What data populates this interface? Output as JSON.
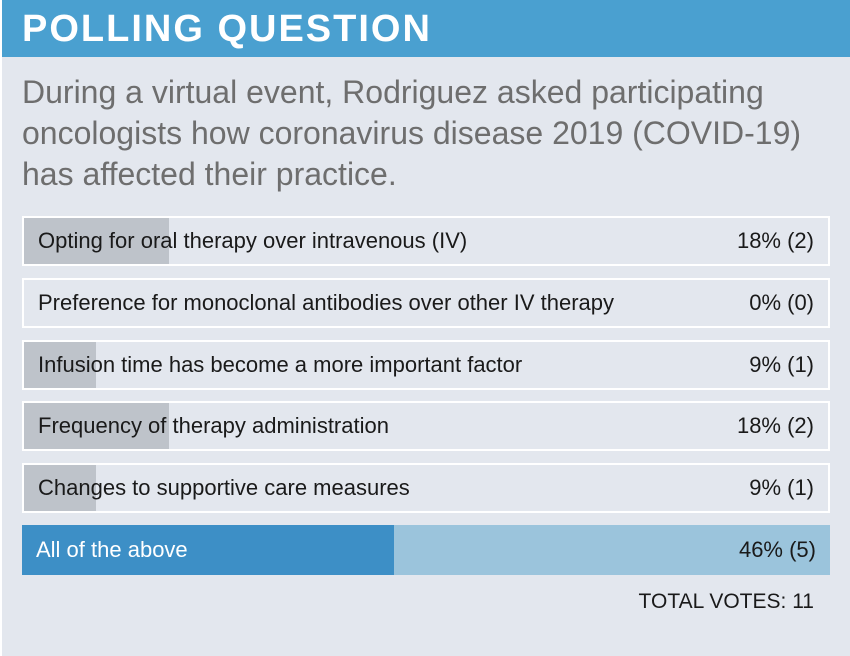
{
  "header": {
    "title": "POLLING QUESTION"
  },
  "question": "During a virtual event, Rodriguez asked participating oncologists how coronavirus disease 2019 (COVID-19) has affected their practice.",
  "options": [
    {
      "label": "Opting for oral therapy over intravenous (IV)",
      "result": "18% (2)"
    },
    {
      "label": "Preference for monoclonal antibodies over other IV therapy",
      "result": "0% (0)"
    },
    {
      "label": "Infusion time has become a more important factor",
      "result": "9% (1)"
    },
    {
      "label": "Frequency of therapy administration",
      "result": "18% (2)"
    },
    {
      "label": "Changes to supportive care measures",
      "result": "9% (1)"
    },
    {
      "label": "All of the above",
      "result": "46% (5)"
    }
  ],
  "total_votes": "TOTAL VOTES: 11",
  "colors": {
    "header": "#4aa0d0",
    "card_bg": "#e3e7ee",
    "bar_fill": "#bec3ca",
    "winner_fill": "#3d8fc6",
    "winner_bg": "#9bc4dc"
  },
  "chart_data": {
    "type": "bar",
    "categories": [
      "Opting for oral therapy over intravenous (IV)",
      "Preference for monoclonal antibodies over other IV therapy",
      "Infusion time has become a more important factor",
      "Frequency of therapy administration",
      "Changes to supportive care measures",
      "All of the above"
    ],
    "values": [
      18,
      0,
      9,
      18,
      9,
      46
    ],
    "votes": [
      2,
      0,
      1,
      2,
      1,
      5
    ],
    "total_votes": 11,
    "orientation": "horizontal",
    "xlim": [
      0,
      100
    ]
  }
}
